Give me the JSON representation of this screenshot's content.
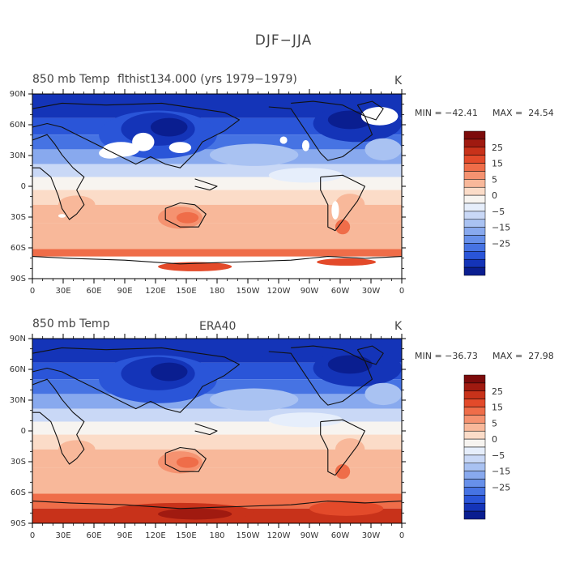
{
  "figure": {
    "title": "DJF−JJA",
    "color_scale": [
      "#f7f4f0",
      "#fbdcc8",
      "#f8b89a",
      "#f59270",
      "#ef6d49",
      "#e34a2a",
      "#c8321a",
      "#a01a10",
      "#7c0b0b",
      "#e6eefb",
      "#c9d8f6",
      "#a9c2f2",
      "#88a9ee",
      "#6790ea",
      "#4673e3",
      "#2a55d8",
      "#1434b8",
      "#0a1e90"
    ]
  },
  "panels": [
    {
      "id": "top",
      "title_left": "850 mb Temp",
      "title_center": "flthist134.000 (yrs 1979−1979)",
      "units": "K",
      "min_label": "MIN = −42.41",
      "max_label": "MAX =  24.54",
      "has_missing": true
    },
    {
      "id": "bottom",
      "title_left": "850 mb Temp",
      "title_center": "ERA40",
      "units": "K",
      "min_label": "MIN = −36.73",
      "max_label": "MAX =  27.98",
      "has_missing": false
    }
  ],
  "axes": {
    "lat_labels": [
      "90N",
      "60N",
      "30N",
      "0",
      "30S",
      "60S",
      "90S"
    ],
    "lon_labels": [
      "0",
      "30E",
      "60E",
      "90E",
      "120E",
      "150E",
      "180",
      "150W",
      "120W",
      "90W",
      "60W",
      "30W",
      "0"
    ]
  },
  "colorbar": {
    "levels": [
      "25",
      "15",
      "5",
      "0",
      "−5",
      "−15",
      "−25"
    ]
  }
}
